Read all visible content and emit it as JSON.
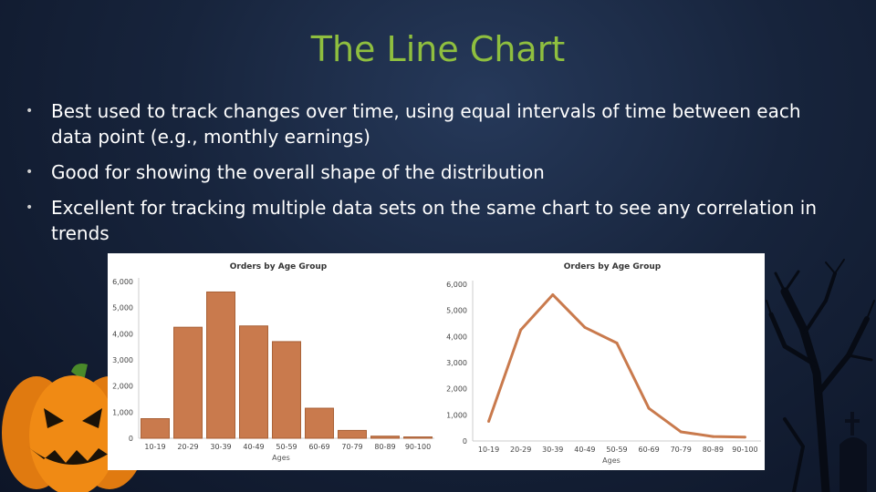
{
  "slide": {
    "title": "The Line Chart",
    "bullets": [
      "Best used to track changes over time, using equal intervals of time between each data point (e.g., monthly earnings)",
      "Good for showing the overall shape of the distribution",
      "Excellent for tracking multiple data sets on the same chart to see any correlation in trends"
    ]
  },
  "colors": {
    "title": "#8fbf3f",
    "bar_fill": "#c97a4d",
    "line_stroke": "#c97a4d",
    "pumpkin": "#f08a14"
  },
  "icons": [
    "pumpkin-icon",
    "bare-tree-icon",
    "tombstone-icon",
    "cross-icon"
  ],
  "chart_data": [
    {
      "type": "bar",
      "title": "Orders by Age Group",
      "xlabel": "Ages",
      "ylabel": "",
      "categories": [
        "10-19",
        "20-29",
        "30-39",
        "40-49",
        "50-59",
        "60-69",
        "70-79",
        "80-89",
        "90-100"
      ],
      "values": [
        750,
        4250,
        5600,
        4300,
        3700,
        1150,
        300,
        80,
        50
      ],
      "yticks": [
        "0",
        "1,000",
        "2,000",
        "3,000",
        "4,000",
        "5,000",
        "6,000"
      ],
      "ylim": [
        0,
        6000
      ]
    },
    {
      "type": "line",
      "title": "Orders by Age Group",
      "xlabel": "Ages",
      "ylabel": "",
      "categories": [
        "10-19",
        "20-29",
        "30-39",
        "40-49",
        "50-59",
        "60-69",
        "70-79",
        "80-89",
        "90-100"
      ],
      "values": [
        750,
        4250,
        5600,
        4350,
        3750,
        1250,
        350,
        170,
        150
      ],
      "yticks": [
        "0",
        "1,000",
        "2,000",
        "3,000",
        "4,000",
        "5,000",
        "6,000"
      ],
      "ylim": [
        0,
        6000
      ]
    }
  ]
}
